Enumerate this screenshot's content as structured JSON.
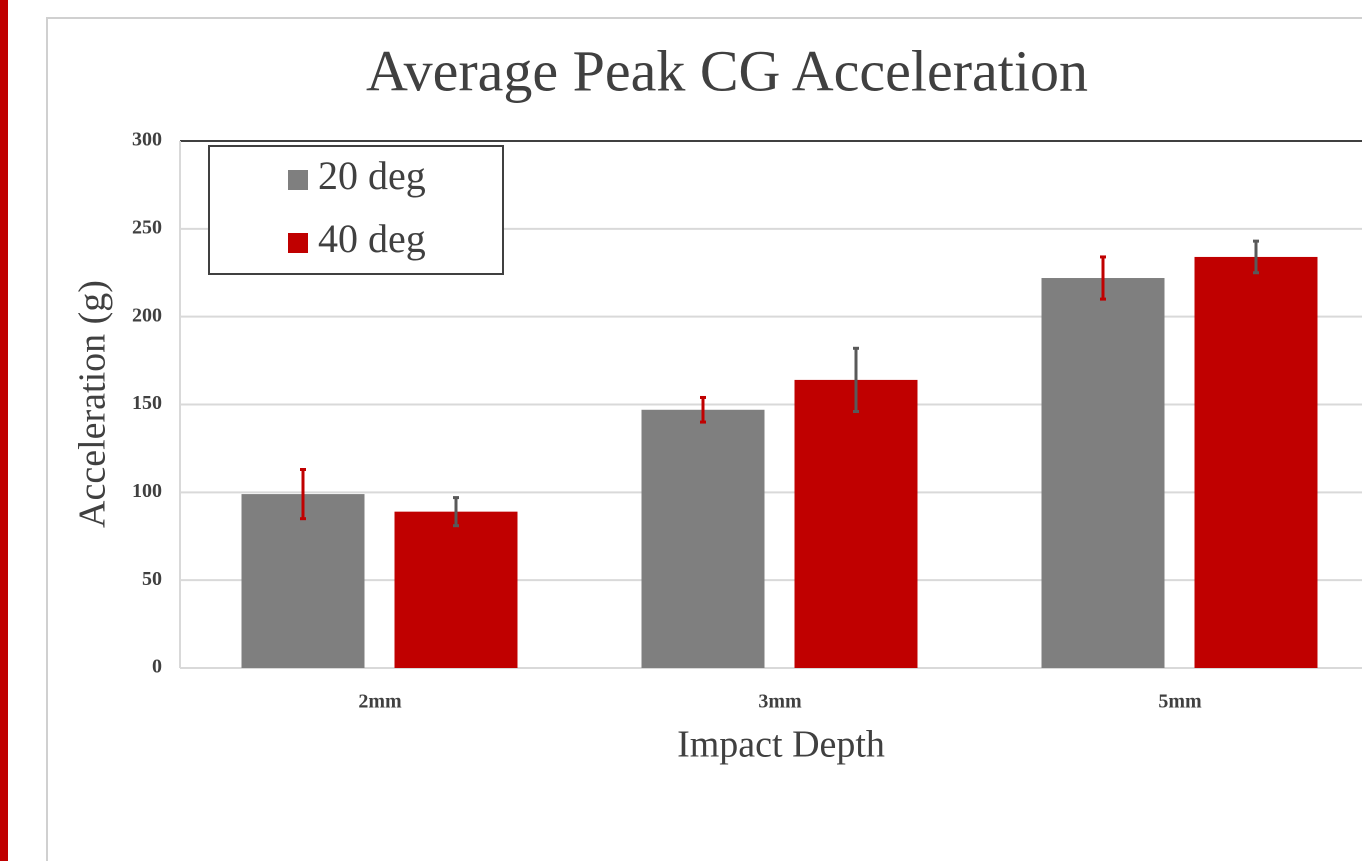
{
  "chart_data": {
    "type": "bar",
    "title": "Average Peak CG Acceleration",
    "x_label": "Impact Depth",
    "y_label": "Acceleration (g)",
    "categories": [
      "2mm",
      "3mm",
      "5mm"
    ],
    "series": [
      {
        "name": "20 deg",
        "color": "#7f7f7f",
        "error_color": "#c00000",
        "values": [
          99,
          147,
          222
        ],
        "errors": [
          14,
          7,
          12
        ]
      },
      {
        "name": "40 deg",
        "color": "#c00000",
        "error_color": "#595959",
        "values": [
          89,
          164,
          234
        ],
        "errors": [
          8,
          18,
          9
        ]
      }
    ],
    "ylim": [
      0,
      300
    ],
    "yticks": [
      0,
      50,
      100,
      150,
      200,
      250,
      300
    ],
    "grid": true,
    "legend": "top-left"
  }
}
